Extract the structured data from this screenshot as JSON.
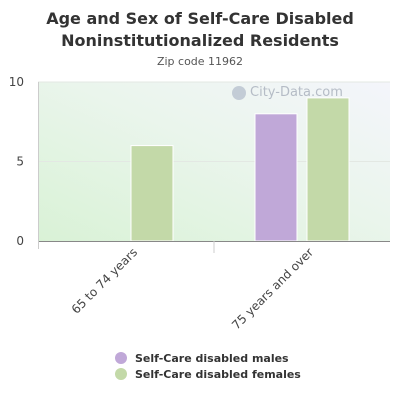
{
  "chart_data": {
    "type": "bar",
    "title": "Age and Sex of Self-Care Disabled Noninstitutionalized Residents",
    "subtitle": "Zip code 11962",
    "categories": [
      "65 to 74 years",
      "75 years and over"
    ],
    "series": [
      {
        "name": "Self-Care disabled males",
        "values": [
          0,
          8
        ],
        "color": "#c0a8d8"
      },
      {
        "name": "Self-Care disabled females",
        "values": [
          6,
          9
        ],
        "color": "#c3d9a8"
      }
    ],
    "ylim": [
      0,
      10
    ],
    "yticks": [
      0,
      5,
      10
    ],
    "grid": true,
    "legend": "bottom"
  },
  "watermark": "City-Data.com"
}
